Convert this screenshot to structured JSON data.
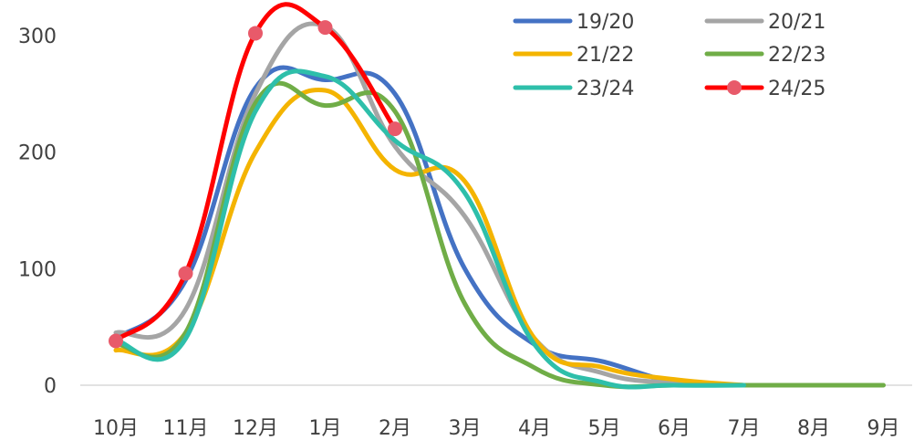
{
  "chart_data": {
    "type": "line",
    "title": "",
    "xlabel": "",
    "ylabel": "",
    "categories": [
      "10月",
      "11月",
      "12月",
      "1月",
      "2月",
      "3月",
      "4月",
      "5月",
      "6月",
      "7月",
      "8月",
      "9月"
    ],
    "ylim": [
      0,
      300
    ],
    "yticks": [
      0,
      100,
      200,
      300
    ],
    "grid": false,
    "legend_position": "top-right",
    "series": [
      {
        "name": "19/20",
        "color": "#4472C4",
        "values": [
          40,
          90,
          255,
          262,
          250,
          100,
          35,
          20,
          3,
          0,
          null,
          null
        ]
      },
      {
        "name": "20/21",
        "color": "#A5A5A5",
        "values": [
          45,
          65,
          250,
          308,
          205,
          145,
          40,
          10,
          2,
          0,
          null,
          null
        ]
      },
      {
        "name": "21/22",
        "color": "#F4B400",
        "values": [
          30,
          45,
          200,
          253,
          185,
          175,
          40,
          15,
          5,
          0,
          null,
          null
        ]
      },
      {
        "name": "22/23",
        "color": "#70AD47",
        "values": [
          35,
          45,
          242,
          240,
          235,
          70,
          15,
          0,
          0,
          0,
          0,
          0
        ]
      },
      {
        "name": "23/24",
        "color": "#2EBFAA",
        "values": [
          38,
          40,
          235,
          265,
          210,
          165,
          35,
          2,
          0,
          0,
          null,
          null
        ]
      },
      {
        "name": "24/25",
        "color": "#FF0000",
        "marker_color": "#E85A6A",
        "marker": "circle",
        "values": [
          38,
          96,
          302,
          307,
          220,
          null,
          null,
          null,
          null,
          null,
          null,
          null
        ]
      }
    ]
  }
}
